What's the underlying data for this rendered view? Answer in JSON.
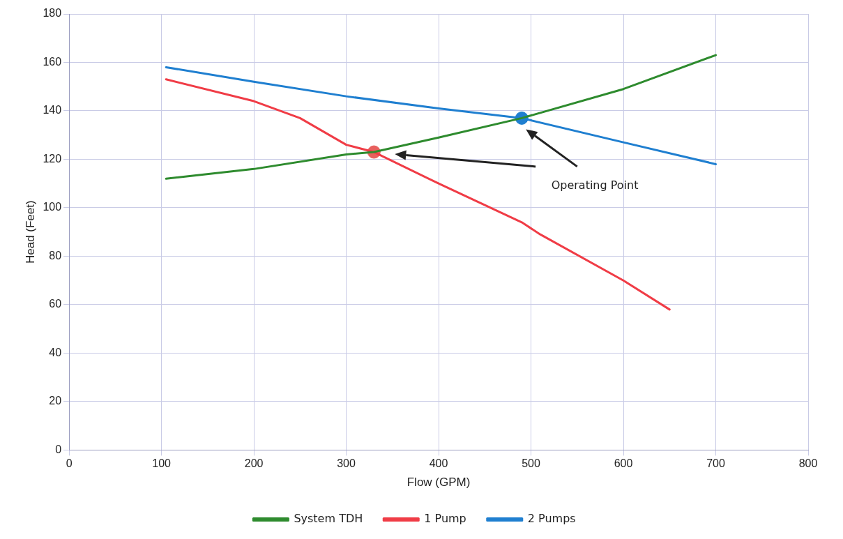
{
  "chart_data": {
    "type": "line",
    "xlabel": "Flow (GPM)",
    "ylabel": "Head (Feet)",
    "xlim": [
      0,
      800
    ],
    "xticks": [
      0,
      100,
      200,
      300,
      400,
      500,
      600,
      700,
      800
    ],
    "ylim": [
      0,
      180
    ],
    "yticks": [
      0,
      20,
      40,
      60,
      80,
      100,
      120,
      140,
      160,
      180
    ],
    "grid": true,
    "legend": "bottom",
    "line_style": "solid",
    "annotations": [
      "Operating Point"
    ],
    "series": [
      {
        "name": "System TDH",
        "color": "#2e8b2e",
        "x": [
          105,
          200,
          300,
          330,
          400,
          490,
          600,
          700
        ],
        "values": [
          112,
          116,
          122,
          123,
          129,
          137,
          149,
          163
        ]
      },
      {
        "name": "1 Pump",
        "color": "#f03c46",
        "x": [
          105,
          200,
          250,
          300,
          330,
          400,
          490,
          510,
          600,
          650
        ],
        "values": [
          153,
          144,
          137,
          126,
          123,
          110,
          94,
          89,
          70,
          58
        ]
      },
      {
        "name": "2 Pumps",
        "color": "#1f7fd0",
        "x": [
          105,
          200,
          300,
          400,
          490,
          600,
          700
        ],
        "values": [
          158,
          152,
          146,
          141,
          137,
          127,
          118
        ]
      },
      {
        "type": "scatter",
        "marker": "circle",
        "color": "#e8605e",
        "x": [
          330
        ],
        "values": [
          123
        ]
      },
      {
        "type": "scatter",
        "marker": "circle",
        "color": "#1f7fd0",
        "x": [
          490
        ],
        "values": [
          137
        ]
      }
    ]
  }
}
